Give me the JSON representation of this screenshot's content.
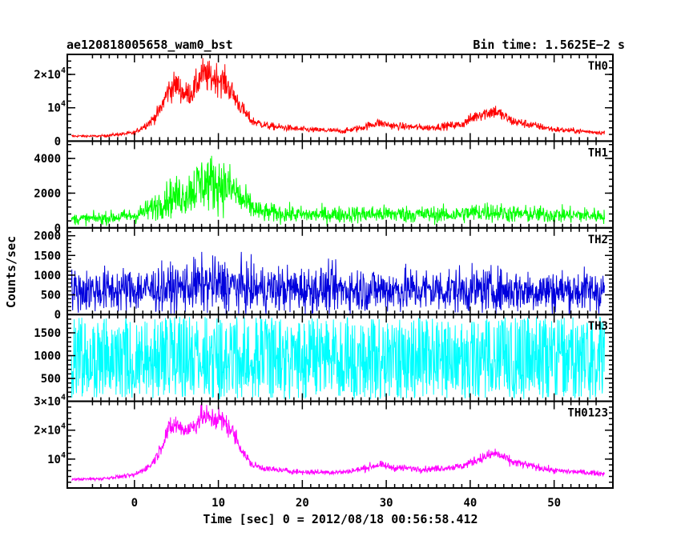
{
  "header": {
    "left_title": "ae120818005658_wam0_bst",
    "right_title": "Bin time: 1.5625E−2 s"
  },
  "chart_data": {
    "type": "line",
    "xlabel": "Time [sec] 0 = 2012/08/18 00:56:58.412",
    "ylabel": "Counts/sec",
    "xlim": [
      -8,
      57
    ],
    "x_ticks": [
      0,
      10,
      20,
      30,
      40,
      50
    ],
    "x_tick_labels": [
      "0",
      "10",
      "20",
      "30",
      "40",
      "50"
    ],
    "panels": [
      {
        "name": "TH0",
        "color": "#ff0000",
        "ylim": [
          0,
          26000
        ],
        "y_ticks": [
          0,
          10000,
          20000
        ],
        "y_tick_labels": [
          {
            "base": "0",
            "exp": ""
          },
          {
            "base": "10",
            "exp": "4"
          },
          {
            "base": "2×10",
            "exp": "4"
          }
        ],
        "baseline": [
          [
            -8,
            1500
          ],
          [
            -4,
            1500
          ],
          [
            0,
            2500
          ],
          [
            2,
            6000
          ],
          [
            3,
            9000
          ],
          [
            4,
            15000
          ],
          [
            5,
            17000
          ],
          [
            6,
            14000
          ],
          [
            7,
            15000
          ],
          [
            8,
            20000
          ],
          [
            9,
            19000
          ],
          [
            10,
            19000
          ],
          [
            11,
            17000
          ],
          [
            12,
            13000
          ],
          [
            13,
            9000
          ],
          [
            14,
            6000
          ],
          [
            16,
            4500
          ],
          [
            20,
            3500
          ],
          [
            25,
            3000
          ],
          [
            27,
            4000
          ],
          [
            29,
            5500
          ],
          [
            31,
            4500
          ],
          [
            35,
            4000
          ],
          [
            39,
            5000
          ],
          [
            41,
            8000
          ],
          [
            43,
            9000
          ],
          [
            45,
            6000
          ],
          [
            50,
            3500
          ],
          [
            56,
            2500
          ]
        ],
        "noise": 0.18
      },
      {
        "name": "TH1",
        "color": "#00ff00",
        "ylim": [
          0,
          5000
        ],
        "y_ticks": [
          0,
          2000,
          4000
        ],
        "y_tick_labels": [
          {
            "base": "0",
            "exp": ""
          },
          {
            "base": "2000",
            "exp": ""
          },
          {
            "base": "4000",
            "exp": ""
          }
        ],
        "baseline": [
          [
            -8,
            500
          ],
          [
            -4,
            550
          ],
          [
            0,
            700
          ],
          [
            2,
            1100
          ],
          [
            4,
            1700
          ],
          [
            6,
            1900
          ],
          [
            8,
            2600
          ],
          [
            10,
            2600
          ],
          [
            12,
            2100
          ],
          [
            13,
            1500
          ],
          [
            15,
            900
          ],
          [
            20,
            750
          ],
          [
            30,
            800
          ],
          [
            38,
            750
          ],
          [
            42,
            950
          ],
          [
            45,
            800
          ],
          [
            56,
            700
          ]
        ],
        "noise": 0.45
      },
      {
        "name": "TH2",
        "color": "#0000dd",
        "ylim": [
          0,
          2200
        ],
        "y_ticks": [
          0,
          500,
          1000,
          1500,
          2000
        ],
        "y_tick_labels": [
          {
            "base": "0",
            "exp": ""
          },
          {
            "base": "500",
            "exp": ""
          },
          {
            "base": "1000",
            "exp": ""
          },
          {
            "base": "1500",
            "exp": ""
          },
          {
            "base": "2000",
            "exp": ""
          }
        ],
        "baseline": [
          [
            -8,
            600
          ],
          [
            4,
            650
          ],
          [
            8,
            750
          ],
          [
            11,
            750
          ],
          [
            14,
            650
          ],
          [
            56,
            600
          ]
        ],
        "noise": 0.65
      },
      {
        "name": "TH3",
        "color": "#00ffff",
        "ylim": [
          0,
          1900
        ],
        "y_ticks": [
          500,
          1000,
          1500
        ],
        "y_tick_labels": [
          {
            "base": "500",
            "exp": ""
          },
          {
            "base": "1000",
            "exp": ""
          },
          {
            "base": "1500",
            "exp": ""
          }
        ],
        "baseline": [
          [
            -8,
            950
          ],
          [
            56,
            950
          ]
        ],
        "noise": 0.55
      },
      {
        "name": "TH0123",
        "color": "#ff00ff",
        "ylim": [
          0,
          30000
        ],
        "y_ticks": [
          10000,
          20000,
          30000
        ],
        "y_tick_labels": [
          {
            "base": "10",
            "exp": "4"
          },
          {
            "base": "2×10",
            "exp": "4"
          },
          {
            "base": "3×10",
            "exp": "4"
          }
        ],
        "baseline": [
          [
            -8,
            3000
          ],
          [
            -4,
            3200
          ],
          [
            0,
            4500
          ],
          [
            2,
            8000
          ],
          [
            3,
            13000
          ],
          [
            4,
            20000
          ],
          [
            5,
            22000
          ],
          [
            6,
            20000
          ],
          [
            7,
            21000
          ],
          [
            8,
            25000
          ],
          [
            9,
            24000
          ],
          [
            10,
            24000
          ],
          [
            11,
            22000
          ],
          [
            12,
            18000
          ],
          [
            13,
            12000
          ],
          [
            14,
            8000
          ],
          [
            16,
            6500
          ],
          [
            20,
            5500
          ],
          [
            25,
            5500
          ],
          [
            27,
            6500
          ],
          [
            29,
            8000
          ],
          [
            31,
            7000
          ],
          [
            35,
            6500
          ],
          [
            39,
            7500
          ],
          [
            41,
            10000
          ],
          [
            43,
            12000
          ],
          [
            45,
            9000
          ],
          [
            50,
            6000
          ],
          [
            56,
            5000
          ]
        ],
        "noise": 0.12
      }
    ]
  }
}
